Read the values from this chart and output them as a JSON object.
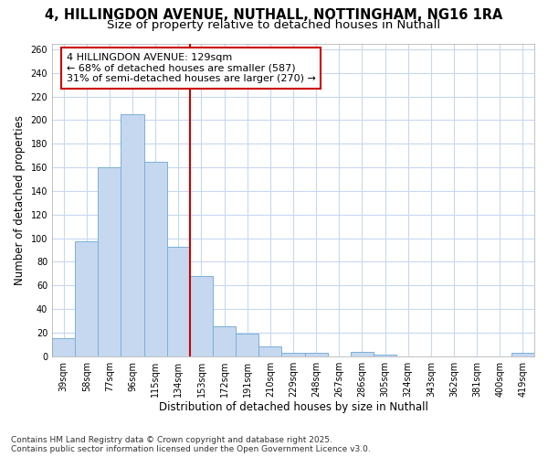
{
  "title1": "4, HILLINGDON AVENUE, NUTHALL, NOTTINGHAM, NG16 1RA",
  "title2": "Size of property relative to detached houses in Nuthall",
  "xlabel": "Distribution of detached houses by size in Nuthall",
  "ylabel": "Number of detached properties",
  "categories": [
    "39sqm",
    "58sqm",
    "77sqm",
    "96sqm",
    "115sqm",
    "134sqm",
    "153sqm",
    "172sqm",
    "191sqm",
    "210sqm",
    "229sqm",
    "248sqm",
    "267sqm",
    "286sqm",
    "305sqm",
    "324sqm",
    "343sqm",
    "362sqm",
    "381sqm",
    "400sqm",
    "419sqm"
  ],
  "values": [
    15,
    97,
    160,
    205,
    165,
    93,
    68,
    25,
    19,
    8,
    3,
    3,
    0,
    4,
    1,
    0,
    0,
    0,
    0,
    0,
    3
  ],
  "bar_color": "#c5d8f0",
  "bar_edge_color": "#7ab0d8",
  "property_size_index": 5,
  "property_label": "4 HILLINGDON AVENUE: 129sqm",
  "annotation_line1": "← 68% of detached houses are smaller (587)",
  "annotation_line2": "31% of semi-detached houses are larger (270) →",
  "vline_color": "#cc0000",
  "annotation_box_edge": "#cc0000",
  "ylim": [
    0,
    265
  ],
  "yticks": [
    0,
    20,
    40,
    60,
    80,
    100,
    120,
    140,
    160,
    180,
    200,
    220,
    240,
    260
  ],
  "background_color": "#ffffff",
  "plot_bg_color": "#ffffff",
  "grid_color": "#c8d8f0",
  "footnote": "Contains HM Land Registry data © Crown copyright and database right 2025.\nContains public sector information licensed under the Open Government Licence v3.0.",
  "title_fontsize": 10.5,
  "subtitle_fontsize": 9.5,
  "axis_label_fontsize": 8.5,
  "tick_fontsize": 7,
  "annotation_fontsize": 8,
  "footnote_fontsize": 6.5
}
